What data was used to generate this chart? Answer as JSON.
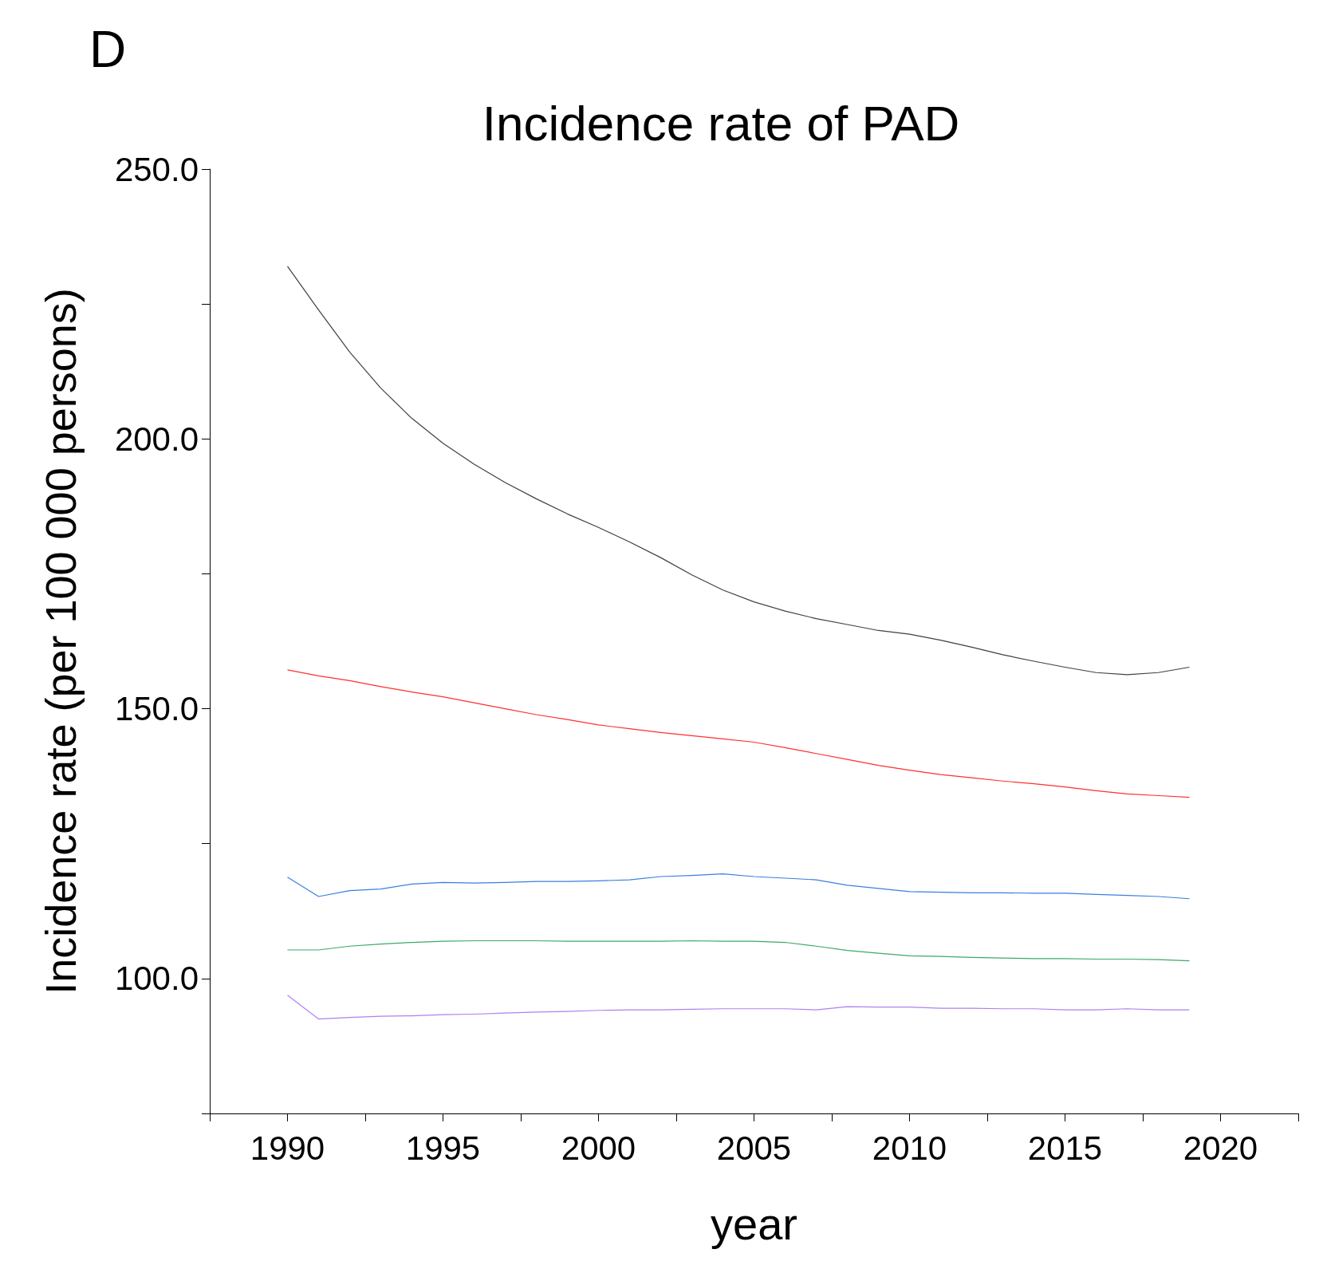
{
  "chart_data": {
    "type": "line",
    "title": "Incidence rate of PAD",
    "xlabel": "year",
    "ylabel": "Incidence rate (per 100 000 persons)",
    "annotations": [
      "D"
    ],
    "x": [
      1990,
      1991,
      1992,
      1993,
      1994,
      1995,
      1996,
      1997,
      1998,
      1999,
      2000,
      2001,
      2002,
      2003,
      2004,
      2005,
      2006,
      2007,
      2008,
      2009,
      2010,
      2011,
      2012,
      2013,
      2014,
      2015,
      2016,
      2017,
      2018,
      2019
    ],
    "series": [
      {
        "color": "#404040",
        "values": [
          232.0,
          223.9,
          216.1,
          209.4,
          203.8,
          199.2,
          195.3,
          191.9,
          188.9,
          186.1,
          183.6,
          180.9,
          178.0,
          174.8,
          172.0,
          169.8,
          168.1,
          166.7,
          165.6,
          164.5,
          163.8,
          162.7,
          161.4,
          160.0,
          158.8,
          157.7,
          156.7,
          156.3,
          156.7,
          157.7
        ]
      },
      {
        "color": "#ff3030",
        "values": [
          157.2,
          156.1,
          155.2,
          154.1,
          153.1,
          152.2,
          151.1,
          150.0,
          148.9,
          148.0,
          147.0,
          146.3,
          145.6,
          145.0,
          144.4,
          143.8,
          142.8,
          141.7,
          140.6,
          139.5,
          138.6,
          137.8,
          137.2,
          136.6,
          136.1,
          135.5,
          134.8,
          134.2,
          133.9,
          133.6
        ]
      },
      {
        "color": "#3a7fe0",
        "values": [
          118.8,
          115.2,
          116.3,
          116.6,
          117.5,
          117.8,
          117.7,
          117.8,
          118.0,
          118.0,
          118.1,
          118.3,
          118.9,
          119.1,
          119.4,
          118.9,
          118.6,
          118.3,
          117.3,
          116.7,
          116.1,
          116.0,
          115.9,
          115.9,
          115.8,
          115.8,
          115.6,
          115.4,
          115.2,
          114.8
        ]
      },
      {
        "color": "#3aaa6a",
        "values": [
          105.3,
          105.3,
          106.0,
          106.4,
          106.7,
          106.9,
          107.0,
          107.0,
          107.0,
          106.9,
          106.9,
          106.9,
          106.9,
          107.0,
          106.9,
          106.9,
          106.7,
          106.0,
          105.2,
          104.7,
          104.2,
          104.1,
          103.9,
          103.8,
          103.7,
          103.7,
          103.6,
          103.6,
          103.5,
          103.3
        ]
      },
      {
        "color": "#b080f0",
        "values": [
          96.9,
          92.5,
          92.8,
          93.0,
          93.1,
          93.3,
          93.4,
          93.6,
          93.8,
          93.9,
          94.1,
          94.2,
          94.2,
          94.3,
          94.4,
          94.4,
          94.4,
          94.2,
          94.8,
          94.7,
          94.7,
          94.5,
          94.5,
          94.4,
          94.4,
          94.2,
          94.2,
          94.4,
          94.2,
          94.2
        ]
      }
    ],
    "xlim": [
      1987.5,
      2022.5
    ],
    "xticks": [
      {
        "value": 1987.5,
        "label": null
      },
      1990,
      {
        "value": 1992.5,
        "label": null
      },
      1995,
      {
        "value": 1997.5,
        "label": null
      },
      2000,
      {
        "value": 2002.5,
        "label": null
      },
      2005,
      {
        "value": 2007.5,
        "label": null
      },
      2010,
      {
        "value": 2012.5,
        "label": null
      },
      2015,
      {
        "value": 2017.5,
        "label": null
      },
      2020,
      {
        "value": 2022.5,
        "label": null
      }
    ],
    "ylim": [
      75,
      250
    ],
    "yticks": [
      {
        "value": 75,
        "label": null
      },
      {
        "value": 100,
        "label": "100.0"
      },
      {
        "value": 125,
        "label": null
      },
      {
        "value": 150,
        "label": "150.0"
      },
      {
        "value": 175,
        "label": null
      },
      {
        "value": 200,
        "label": "200.0"
      },
      {
        "value": 225,
        "label": null
      },
      {
        "value": 250,
        "label": "250.0"
      }
    ],
    "grid": false,
    "marker": "none",
    "line_style": "solid"
  }
}
